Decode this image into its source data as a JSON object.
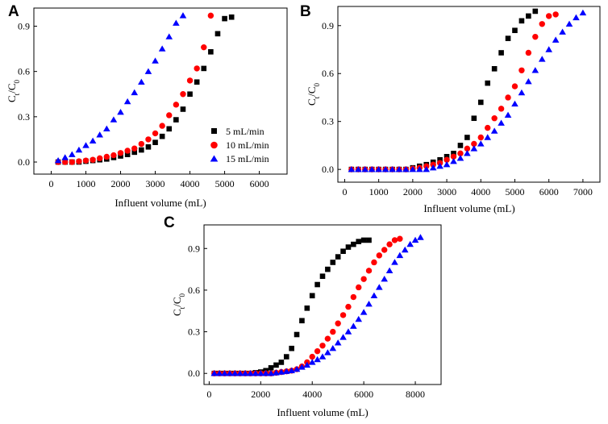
{
  "chart_data": [
    {
      "panel": "A",
      "type": "scatter",
      "xlabel": "Influent volume (mL)",
      "ylabel_main": "C",
      "ylabel_sub1": "t",
      "ylabel_mid": "/C",
      "ylabel_sub2": "0",
      "xlim": [
        -500,
        6800
      ],
      "ylim": [
        -0.08,
        1.02
      ],
      "xticks": [
        0,
        1000,
        2000,
        3000,
        4000,
        5000,
        6000
      ],
      "yticks": [
        0.0,
        0.3,
        0.6,
        0.9
      ],
      "ytick_labels": [
        "0.0",
        "0.3",
        "0.6",
        "0.9"
      ],
      "legend": "inside-right",
      "series": [
        {
          "name": "5 mL/min",
          "marker": "square",
          "color": "#000000",
          "x": [
            200,
            400,
            600,
            800,
            1000,
            1200,
            1400,
            1600,
            1800,
            2000,
            2200,
            2400,
            2600,
            2800,
            3000,
            3200,
            3400,
            3600,
            3800,
            4000,
            4200,
            4400,
            4600,
            4800,
            5000,
            5200
          ],
          "y": [
            0.0,
            0.0,
            0.0,
            0.0,
            0.005,
            0.01,
            0.015,
            0.02,
            0.03,
            0.04,
            0.05,
            0.065,
            0.08,
            0.1,
            0.13,
            0.17,
            0.22,
            0.28,
            0.35,
            0.45,
            0.53,
            0.62,
            0.73,
            0.85,
            0.95,
            0.96
          ]
        },
        {
          "name": "10 mL/min",
          "marker": "circle",
          "color": "#ff0000",
          "x": [
            200,
            400,
            600,
            800,
            1000,
            1200,
            1400,
            1600,
            1800,
            2000,
            2200,
            2400,
            2600,
            2800,
            3000,
            3200,
            3400,
            3600,
            3800,
            4000,
            4200,
            4400,
            4600
          ],
          "y": [
            0.0,
            0.0,
            0.0,
            0.005,
            0.01,
            0.015,
            0.025,
            0.035,
            0.045,
            0.06,
            0.075,
            0.09,
            0.12,
            0.15,
            0.19,
            0.24,
            0.31,
            0.38,
            0.45,
            0.54,
            0.62,
            0.76,
            0.97
          ]
        },
        {
          "name": "15 mL/min",
          "marker": "triangle",
          "color": "#0000ff",
          "x": [
            200,
            400,
            600,
            800,
            1000,
            1200,
            1400,
            1600,
            1800,
            2000,
            2200,
            2400,
            2600,
            2800,
            3000,
            3200,
            3400,
            3600,
            3800
          ],
          "y": [
            0.01,
            0.03,
            0.05,
            0.08,
            0.11,
            0.14,
            0.18,
            0.22,
            0.28,
            0.33,
            0.4,
            0.46,
            0.53,
            0.6,
            0.67,
            0.75,
            0.83,
            0.92,
            0.97
          ]
        }
      ]
    },
    {
      "panel": "B",
      "type": "scatter",
      "xlabel": "Influent volume (mL)",
      "ylabel_main": "C",
      "ylabel_sub1": "t",
      "ylabel_mid": "/C",
      "ylabel_sub2": "0",
      "xlim": [
        -200,
        7500
      ],
      "ylim": [
        -0.08,
        1.02
      ],
      "xticks": [
        0,
        1000,
        2000,
        3000,
        4000,
        5000,
        6000,
        7000
      ],
      "yticks": [
        0.0,
        0.3,
        0.6,
        0.9
      ],
      "ytick_labels": [
        "0.0",
        "0.3",
        "0.6",
        "0.9"
      ],
      "legend": "none",
      "series": [
        {
          "name": "5 mL/min",
          "marker": "square",
          "color": "#000000",
          "x": [
            200,
            400,
            600,
            800,
            1000,
            1200,
            1400,
            1600,
            1800,
            2000,
            2200,
            2400,
            2600,
            2800,
            3000,
            3200,
            3400,
            3600,
            3800,
            4000,
            4200,
            4400,
            4600,
            4800,
            5000,
            5200,
            5400,
            5600
          ],
          "y": [
            0,
            0,
            0,
            0,
            0,
            0,
            0,
            0,
            0,
            0.01,
            0.02,
            0.03,
            0.045,
            0.06,
            0.08,
            0.1,
            0.15,
            0.2,
            0.32,
            0.42,
            0.54,
            0.63,
            0.73,
            0.82,
            0.87,
            0.93,
            0.96,
            0.99
          ]
        },
        {
          "name": "10 mL/min",
          "marker": "circle",
          "color": "#ff0000",
          "x": [
            200,
            400,
            600,
            800,
            1000,
            1200,
            1400,
            1600,
            1800,
            2000,
            2200,
            2400,
            2600,
            2800,
            3000,
            3200,
            3400,
            3600,
            3800,
            4000,
            4200,
            4400,
            4600,
            4800,
            5000,
            5200,
            5400,
            5600,
            5800,
            6000,
            6200
          ],
          "y": [
            0,
            0,
            0,
            0,
            0,
            0,
            0,
            0,
            0,
            0.005,
            0.01,
            0.02,
            0.03,
            0.04,
            0.06,
            0.08,
            0.1,
            0.13,
            0.16,
            0.2,
            0.26,
            0.32,
            0.38,
            0.45,
            0.52,
            0.62,
            0.73,
            0.83,
            0.91,
            0.96,
            0.97
          ]
        },
        {
          "name": "15 mL/min",
          "marker": "triangle",
          "color": "#0000ff",
          "x": [
            200,
            400,
            600,
            800,
            1000,
            1200,
            1400,
            1600,
            1800,
            2000,
            2200,
            2400,
            2600,
            2800,
            3000,
            3200,
            3400,
            3600,
            3800,
            4000,
            4200,
            4400,
            4600,
            4800,
            5000,
            5200,
            5400,
            5600,
            5800,
            6000,
            6200,
            6400,
            6600,
            6800,
            7000
          ],
          "y": [
            0,
            0,
            0,
            0,
            0,
            0,
            0,
            0,
            0,
            0,
            0,
            0,
            0.01,
            0.02,
            0.03,
            0.05,
            0.07,
            0.1,
            0.13,
            0.16,
            0.2,
            0.24,
            0.29,
            0.34,
            0.41,
            0.48,
            0.55,
            0.62,
            0.69,
            0.75,
            0.81,
            0.86,
            0.91,
            0.95,
            0.98
          ]
        }
      ]
    },
    {
      "panel": "C",
      "type": "scatter",
      "xlabel": "Influent volume (mL)",
      "ylabel_main": "C",
      "ylabel_sub1": "t",
      "ylabel_mid": "/C",
      "ylabel_sub2": "0",
      "xlim": [
        -200,
        9000
      ],
      "ylim": [
        -0.08,
        1.07
      ],
      "xticks": [
        0,
        2000,
        4000,
        6000,
        8000
      ],
      "yticks": [
        0.0,
        0.3,
        0.6,
        0.9
      ],
      "ytick_labels": [
        "0.0",
        "0.3",
        "0.6",
        "0.9"
      ],
      "legend": "none",
      "series": [
        {
          "name": "5 mL/min",
          "marker": "square",
          "color": "#000000",
          "x": [
            200,
            400,
            600,
            800,
            1000,
            1200,
            1400,
            1600,
            1800,
            2000,
            2200,
            2400,
            2600,
            2800,
            3000,
            3200,
            3400,
            3600,
            3800,
            4000,
            4200,
            4400,
            4600,
            4800,
            5000,
            5200,
            5400,
            5600,
            5800,
            6000,
            6200
          ],
          "y": [
            0,
            0,
            0,
            0,
            0,
            0,
            0,
            0,
            0.005,
            0.01,
            0.02,
            0.04,
            0.06,
            0.08,
            0.12,
            0.18,
            0.28,
            0.38,
            0.47,
            0.56,
            0.64,
            0.7,
            0.75,
            0.8,
            0.84,
            0.88,
            0.91,
            0.93,
            0.95,
            0.96,
            0.96
          ]
        },
        {
          "name": "10 mL/min",
          "marker": "circle",
          "color": "#ff0000",
          "x": [
            200,
            400,
            600,
            800,
            1000,
            1200,
            1400,
            1600,
            1800,
            2000,
            2200,
            2400,
            2600,
            2800,
            3000,
            3200,
            3400,
            3600,
            3800,
            4000,
            4200,
            4400,
            4600,
            4800,
            5000,
            5200,
            5400,
            5600,
            5800,
            6000,
            6200,
            6400,
            6600,
            6800,
            7000,
            7200,
            7400
          ],
          "y": [
            0,
            0,
            0,
            0,
            0,
            0,
            0,
            0,
            0,
            0,
            0,
            0,
            0.005,
            0.01,
            0.015,
            0.02,
            0.03,
            0.05,
            0.08,
            0.12,
            0.16,
            0.2,
            0.25,
            0.3,
            0.36,
            0.42,
            0.48,
            0.55,
            0.62,
            0.68,
            0.74,
            0.8,
            0.85,
            0.89,
            0.93,
            0.96,
            0.97
          ]
        },
        {
          "name": "15 mL/min",
          "marker": "triangle",
          "color": "#0000ff",
          "x": [
            200,
            400,
            600,
            800,
            1000,
            1200,
            1400,
            1600,
            1800,
            2000,
            2200,
            2400,
            2600,
            2800,
            3000,
            3200,
            3400,
            3600,
            3800,
            4000,
            4200,
            4400,
            4600,
            4800,
            5000,
            5200,
            5400,
            5600,
            5800,
            6000,
            6200,
            6400,
            6600,
            6800,
            7000,
            7200,
            7400,
            7600,
            7800,
            8000,
            8200
          ],
          "y": [
            0,
            0,
            0,
            0,
            0,
            0,
            0,
            0,
            0,
            0,
            0,
            0,
            0.005,
            0.01,
            0.015,
            0.02,
            0.03,
            0.045,
            0.06,
            0.08,
            0.1,
            0.12,
            0.15,
            0.18,
            0.22,
            0.26,
            0.3,
            0.34,
            0.39,
            0.44,
            0.5,
            0.56,
            0.62,
            0.68,
            0.74,
            0.8,
            0.85,
            0.89,
            0.93,
            0.96,
            0.98
          ]
        }
      ]
    }
  ]
}
